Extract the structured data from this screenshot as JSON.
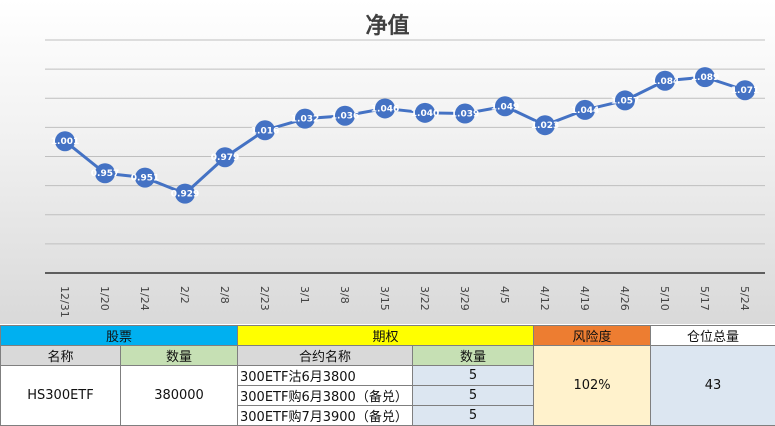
{
  "chart_data": {
    "type": "line",
    "title": "净值",
    "categories": [
      "12/31",
      "1/20",
      "1/24",
      "2/2",
      "2/8",
      "2/23",
      "3/1",
      "3/8",
      "3/15",
      "3/22",
      "3/29",
      "4/5",
      "4/12",
      "4/19",
      "4/26",
      "5/10",
      "5/17",
      "5/24"
    ],
    "values": [
      1.001,
      0.957,
      0.951,
      0.929,
      0.979,
      1.016,
      1.032,
      1.036,
      1.046,
      1.04,
      1.039,
      1.049,
      1.023,
      1.044,
      1.057,
      1.084,
      1.089,
      1.071
    ],
    "point_labels": [
      "1.001",
      "0.957",
      "0.951",
      "0.929",
      "0.979",
      "1.016",
      "1.032",
      "1.036",
      "1.046",
      "1.040",
      "1.039",
      "1.049",
      "1.023",
      "1.044",
      "1.057",
      "1.084",
      "1.089",
      "1.071"
    ],
    "ylim": [
      0.82,
      1.14
    ],
    "grid": true,
    "y_axis_labels_visible": false,
    "line_color": "#4472c4",
    "marker_color": "#4472c4"
  },
  "table": {
    "stock_header": "股票",
    "option_header": "期权",
    "risk_header": "风险度",
    "position_header": "仓位总量",
    "stock_name_col": "名称",
    "stock_qty_col": "数量",
    "option_name_col": "合约名称",
    "option_qty_col": "数量",
    "stock_name": "HS300ETF",
    "stock_qty": "380000",
    "options": [
      {
        "name": "300ETF沽6月3800",
        "qty": "5"
      },
      {
        "name": "300ETF购6月3800（备兑）",
        "qty": "5"
      },
      {
        "name": "300ETF购7月3900（备兑）",
        "qty": "5"
      }
    ],
    "risk_value": "102%",
    "position_total": "43"
  },
  "colors": {
    "stock_header": "#00b0f0",
    "option_header": "#ffff00",
    "risk_header": "#ed7d31"
  }
}
